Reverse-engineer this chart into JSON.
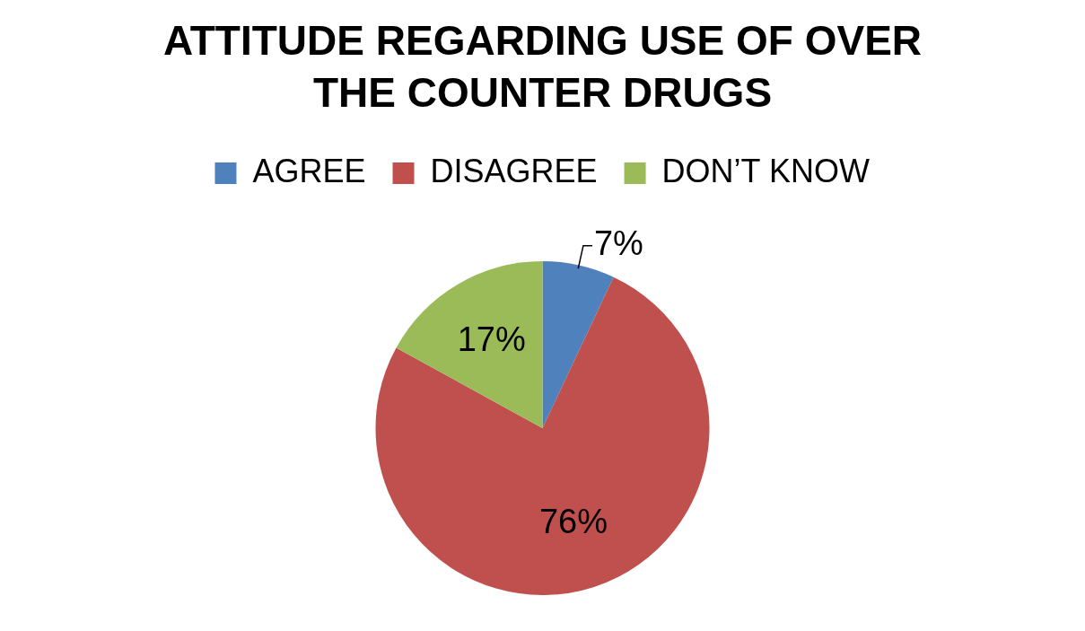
{
  "chart_data": {
    "type": "pie",
    "title": "ATTITUDE REGARDING USE OF OVER THE COUNTER DRUGS",
    "categories": [
      "AGREE",
      "DISAGREE",
      "DON’T KNOW"
    ],
    "values": [
      7,
      76,
      17
    ],
    "colors": [
      "#4f81bd",
      "#c0504d",
      "#9bbb59"
    ],
    "value_labels": [
      "7%",
      "76%",
      "17%"
    ],
    "legend": "top"
  }
}
